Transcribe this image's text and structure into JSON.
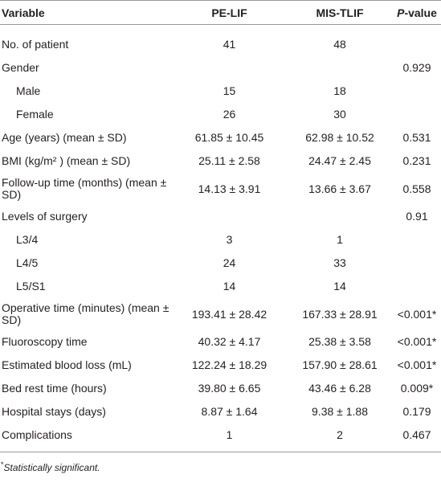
{
  "table": {
    "header": [
      "Variable",
      "PE-LIF",
      "MIS-TLIF",
      {
        "italic": "P",
        "text": "-value"
      }
    ],
    "rows": [
      {
        "row": [
          "No. of patient",
          "41",
          "48",
          null
        ]
      },
      {
        "row": [
          "Gender",
          null,
          null,
          "0.929"
        ],
        "items": [
          [
            "Male",
            "15",
            "18",
            null
          ],
          [
            "Female",
            "26",
            "30",
            null
          ]
        ]
      },
      {
        "row": [
          "Age (years) (mean ± SD)",
          "61.85 ± 10.45",
          "62.98 ± 10.52",
          "0.531"
        ]
      },
      {
        "row": [
          "BMI (kg/m² ) (mean ± SD)",
          "25.11 ± 2.58",
          "24.47 ± 2.45",
          "0.231"
        ]
      },
      {
        "row": [
          "Follow-up time (months) (mean ± SD)",
          "14.13 ± 3.91",
          "13.66 ± 3.67",
          "0.558"
        ]
      },
      {
        "row": [
          "Levels of surgery",
          null,
          null,
          "0.91"
        ],
        "items": [
          [
            "L3/4",
            "3",
            "1",
            null
          ],
          [
            "L4/5",
            "24",
            "33",
            null
          ],
          [
            "L5/S1",
            "14",
            "14",
            null
          ]
        ]
      },
      {
        "row": [
          "Operative time (minutes) (mean ± SD)",
          "193.41 ± 28.42",
          "167.33 ± 28.91",
          "<0.001*"
        ]
      },
      {
        "row": [
          "Fluoroscopy time",
          "40.32 ± 4.17",
          "25.38 ± 3.58",
          "<0.001*"
        ]
      },
      {
        "row": [
          "Estimated blood loss (mL)",
          "122.24 ± 18.29",
          "157.90 ± 28.61",
          "<0.001*"
        ]
      },
      {
        "row": [
          "Bed rest time (hours)",
          "39.80 ± 6.65",
          "43.46 ± 6.28",
          "0.009*"
        ]
      },
      {
        "row": [
          "Hospital stays (days)",
          "8.87 ± 1.64",
          "9.38 ± 1.88",
          "0.179"
        ]
      },
      {
        "row": [
          "Complications",
          "1",
          "2",
          "0.467"
        ]
      }
    ],
    "footnote": {
      "mark": "*",
      "text": "Statistically significant."
    }
  }
}
